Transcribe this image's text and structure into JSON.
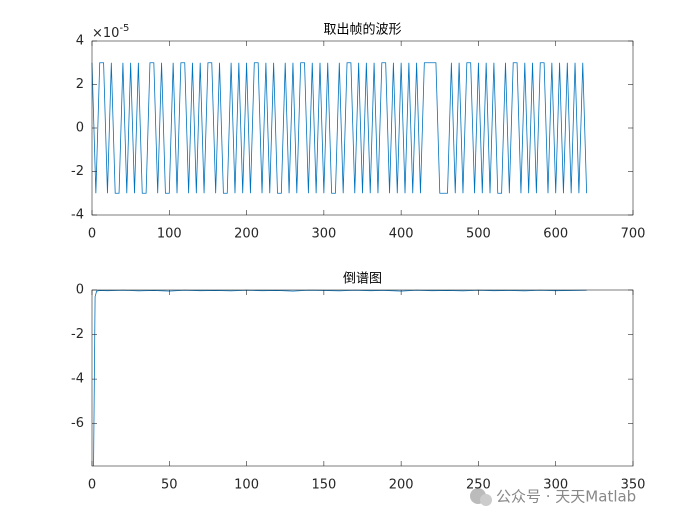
{
  "chart_data": [
    {
      "type": "line",
      "title": "取出帧的波形",
      "y_multiplier": "×10",
      "y_exponent": "-5",
      "color": "#0072bd",
      "xlim": [
        0,
        700
      ],
      "xticks": [
        0,
        100,
        200,
        300,
        400,
        500,
        600,
        700
      ],
      "ylim": [
        -4,
        4
      ],
      "yticks": [
        -4,
        -2,
        0,
        2,
        4
      ],
      "x": [
        0,
        5,
        10,
        15,
        20,
        25,
        30,
        35,
        40,
        45,
        50,
        55,
        60,
        65,
        70,
        75,
        80,
        85,
        90,
        95,
        100,
        105,
        110,
        115,
        120,
        125,
        130,
        135,
        140,
        145,
        150,
        155,
        160,
        165,
        170,
        175,
        180,
        185,
        190,
        195,
        200,
        205,
        210,
        215,
        220,
        225,
        230,
        235,
        240,
        245,
        250,
        255,
        260,
        265,
        270,
        275,
        280,
        285,
        290,
        295,
        300,
        305,
        310,
        315,
        320,
        325,
        330,
        335,
        340,
        345,
        350,
        355,
        360,
        365,
        370,
        375,
        380,
        385,
        390,
        395,
        400,
        405,
        410,
        415,
        420,
        425,
        430,
        435,
        440,
        445,
        450,
        455,
        460,
        465,
        470,
        475,
        480,
        485,
        490,
        495,
        500,
        505,
        510,
        515,
        520,
        525,
        530,
        535,
        540,
        545,
        550,
        555,
        560,
        565,
        570,
        575,
        580,
        585,
        590,
        595,
        600,
        605,
        610,
        615,
        620,
        625,
        630,
        635,
        640
      ],
      "values": [
        3,
        -3,
        3,
        3,
        -3,
        3,
        -3,
        -3,
        3,
        -3,
        3,
        -3,
        3,
        -3,
        -3,
        3,
        3,
        -3,
        3,
        -3,
        -3,
        3,
        -3,
        3,
        3,
        -3,
        3,
        -3,
        3,
        -3,
        3,
        3,
        -3,
        3,
        -3,
        -3,
        3,
        -3,
        3,
        -3,
        3,
        -3,
        3,
        3,
        -3,
        3,
        -3,
        3,
        -3,
        -3,
        3,
        -3,
        3,
        -3,
        3,
        3,
        -3,
        3,
        -3,
        3,
        -3,
        3,
        -3,
        -3,
        3,
        -3,
        3,
        3,
        -3,
        3,
        -3,
        3,
        -3,
        3,
        -3,
        3,
        3,
        -3,
        3,
        -3,
        3,
        -3,
        3,
        -3,
        3,
        -3,
        3,
        3,
        3,
        3,
        -3,
        -3,
        -3,
        3,
        -3,
        3,
        -3,
        3,
        3,
        -3,
        3,
        -3,
        3,
        -3,
        3,
        -3,
        -3,
        3,
        -3,
        3,
        3,
        -3,
        3,
        -3,
        3,
        -3,
        3,
        3,
        -3,
        3,
        -3,
        3,
        -3,
        3,
        -3,
        3,
        -3,
        3,
        -3
      ]
    },
    {
      "type": "line",
      "title": "倒谱图",
      "color": "#0072bd",
      "xlim": [
        0,
        350
      ],
      "xticks": [
        0,
        50,
        100,
        150,
        200,
        250,
        300,
        350
      ],
      "ylim": [
        -7.9,
        0
      ],
      "yticks": [
        -6,
        -4,
        -2,
        0
      ],
      "x": [
        1,
        2,
        3,
        5,
        10,
        20,
        30,
        40,
        50,
        60,
        70,
        80,
        90,
        100,
        110,
        120,
        130,
        140,
        150,
        160,
        170,
        180,
        190,
        200,
        210,
        220,
        230,
        240,
        250,
        260,
        270,
        280,
        290,
        300,
        310,
        320
      ],
      "values": [
        -7.9,
        -0.3,
        -0.05,
        -0.02,
        -0.03,
        -0.01,
        -0.04,
        -0.02,
        -0.05,
        -0.01,
        -0.03,
        -0.02,
        -0.04,
        -0.01,
        -0.03,
        -0.02,
        -0.05,
        -0.01,
        -0.02,
        -0.04,
        -0.01,
        -0.03,
        -0.02,
        -0.05,
        -0.01,
        -0.03,
        -0.02,
        -0.04,
        -0.01,
        -0.03,
        -0.02,
        -0.04,
        -0.01,
        -0.03,
        -0.02,
        -0.01
      ]
    }
  ],
  "watermark": "公众号 · 天天Matlab"
}
